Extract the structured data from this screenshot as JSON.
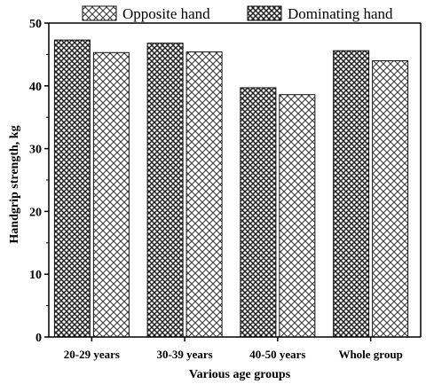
{
  "chart_data": {
    "type": "bar",
    "categories": [
      "20-29 years",
      "30-39 years",
      "40-50 years",
      "Whole group"
    ],
    "series": [
      {
        "name": "Dominating hand",
        "values": [
          47.3,
          46.8,
          39.7,
          45.6
        ],
        "pattern": "dense-crosshatch"
      },
      {
        "name": "Opposite hand",
        "values": [
          45.3,
          45.4,
          38.6,
          44.0
        ],
        "pattern": "open-crosshatch"
      }
    ],
    "xlabel": "Various age groups",
    "ylabel": "Handgrip strength, kg",
    "ylim": [
      0,
      50
    ],
    "yticks": [
      0,
      10,
      20,
      30,
      40,
      50
    ],
    "legend": {
      "placement": "top",
      "order": [
        "Opposite hand",
        "Dominating hand"
      ]
    },
    "grid": false
  }
}
